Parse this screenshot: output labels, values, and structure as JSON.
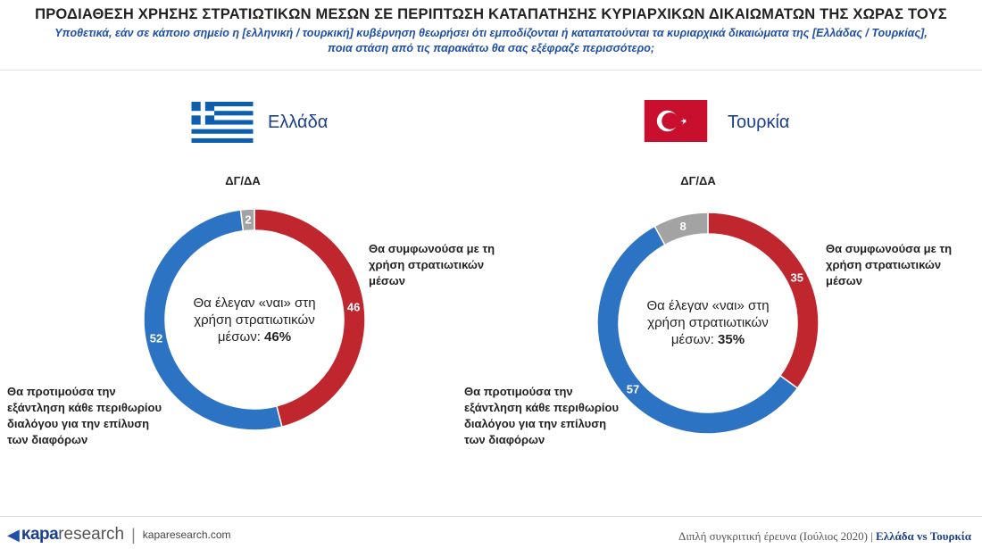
{
  "header": {
    "title": "ΠΡΟΔΙΑΘΕΣΗ ΧΡΗΣΗΣ ΣΤΡΑΤΙΩΤΙΚΩΝ ΜΕΣΩΝ ΣΕ ΠΕΡΙΠΤΩΣΗ ΚΑΤΑΠΑΤΗΣΗΣ ΚΥΡΙΑΡΧΙΚΩΝ ΔΙΚΑΙΩΜΑΤΩΝ ΤΗΣ ΧΩΡΑΣ ΤΟΥΣ",
    "subtitle_line1": "Υποθετικά, εάν σε κάποιο σημείο η [ελληνική / τουρκική] κυβέρνηση θεωρήσει ότι εμποδίζονται ή καταπατούνται τα κυριαρχικά δικαιώματα της [Ελλάδας / Τουρκίας],",
    "subtitle_line2": "ποια στάση από τις παρακάτω θα σας εξέφραζε περισσότερο;"
  },
  "colors": {
    "red": "#c0262d",
    "blue": "#2d73c4",
    "gray": "#a3a3a3",
    "title_blue": "#1f4fa8"
  },
  "chart_data": [
    {
      "type": "pie",
      "variant": "donut",
      "title": "Ελλάδα",
      "flag": "greece-flag",
      "top_label": "ΔΓ/ΔΑ",
      "slices": [
        {
          "label": "Θα συμφωνούσα με τη χρήση στρατιωτικών μέσων",
          "value": 46,
          "color": "#c0262d"
        },
        {
          "label": "Θα προτιμούσα την εξάντληση κάθε περιθωρίου διαλόγου για την επίλυση των διαφόρων",
          "value": 52,
          "color": "#2d73c4"
        },
        {
          "label": "ΔΓ/ΔΑ",
          "value": 2,
          "color": "#a3a3a3"
        }
      ],
      "center_text": "Θα έλεγαν «ναι» στη χρήση στρατιωτικών μέσων:",
      "center_value": "46%"
    },
    {
      "type": "pie",
      "variant": "donut",
      "title": "Τουρκία",
      "flag": "turkey-flag",
      "top_label": "ΔΓ/ΔΑ",
      "slices": [
        {
          "label": "Θα συμφωνούσα με τη χρήση στρατιωτικών μέσων",
          "value": 35,
          "color": "#c0262d"
        },
        {
          "label": "Θα προτιμούσα την εξάντληση κάθε περιθωρίου διαλόγου για την επίλυση των διαφόρων",
          "value": 57,
          "color": "#2d73c4"
        },
        {
          "label": "ΔΓ/ΔΑ",
          "value": 8,
          "color": "#a3a3a3"
        }
      ],
      "center_text": "Θα έλεγαν «ναι» στη χρήση στρατιωτικών μέσων:",
      "center_value": "35%"
    }
  ],
  "labels": {
    "agree_l1": "Θα συμφωνούσα με τη",
    "agree_l2": "χρήση στρατιωτικών",
    "agree_l3": "μέσων",
    "prefer_l1": "Θα προτιμούσα την",
    "prefer_l2": "εξάντληση κάθε περιθωρίου",
    "prefer_l3": "διαλόγου για την επίλυση",
    "prefer_l4": "των διαφόρων",
    "center_l1": "Θα έλεγαν «ναι» στη",
    "center_l2": "χρήση στρατιωτικών",
    "center_l3": "μέσων:"
  },
  "footer": {
    "logo_kapa": "κapa",
    "logo_research": "research",
    "url": "kaparesearch.com",
    "note": "Διπλή συγκριτική έρευνα (Ιούλιος 2020) |",
    "note_bold": "Ελλάδα vs Τουρκία"
  }
}
